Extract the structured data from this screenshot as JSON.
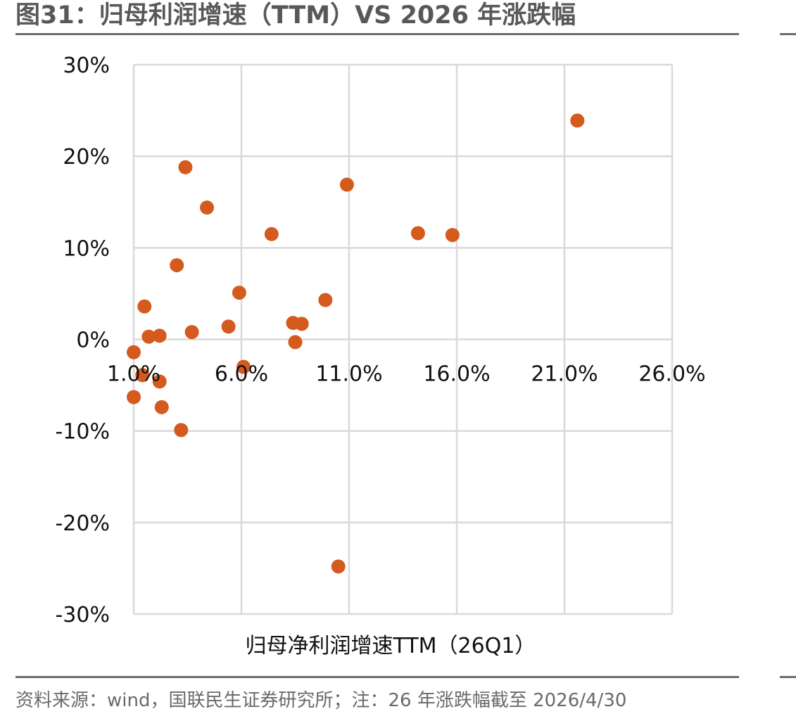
{
  "title": "图31：归母利润增速（TTM）VS 2026 年涨跌幅",
  "source": "资料来源：wind，国联民生证券研究所；注：26 年涨跌幅截至 2026/4/30",
  "chart_data": {
    "type": "scatter",
    "title": "",
    "xlabel": "归母净利润增速TTM（26Q1）",
    "ylabel": "",
    "xlim": [
      1.0,
      26.0
    ],
    "ylim": [
      -30,
      30
    ],
    "x_ticks": [
      1.0,
      6.0,
      11.0,
      16.0,
      21.0,
      26.0
    ],
    "x_tick_labels": [
      "1.0%",
      "6.0%",
      "11.0%",
      "16.0%",
      "21.0%",
      "26.0%"
    ],
    "y_ticks": [
      30,
      20,
      10,
      0,
      -10,
      -20,
      -30
    ],
    "y_tick_labels": [
      "30%",
      "20%",
      "10%",
      "0%",
      "-10%",
      "-20%",
      "-30%"
    ],
    "grid": true,
    "legend": "none",
    "marker_color": "#D55A1E",
    "grid_color": "#D9D9D9",
    "points": [
      {
        "x": 21.6,
        "y": 23.9
      },
      {
        "x": 3.4,
        "y": 18.8
      },
      {
        "x": 10.9,
        "y": 16.9
      },
      {
        "x": 4.4,
        "y": 14.4
      },
      {
        "x": 14.2,
        "y": 11.6
      },
      {
        "x": 15.8,
        "y": 11.4
      },
      {
        "x": 7.4,
        "y": 11.5
      },
      {
        "x": 3.0,
        "y": 8.1
      },
      {
        "x": 5.9,
        "y": 5.1
      },
      {
        "x": 9.9,
        "y": 4.3
      },
      {
        "x": 1.5,
        "y": 3.6
      },
      {
        "x": 8.4,
        "y": 1.8
      },
      {
        "x": 8.8,
        "y": 1.7
      },
      {
        "x": 5.4,
        "y": 1.4
      },
      {
        "x": 3.7,
        "y": 0.8
      },
      {
        "x": 2.2,
        "y": 0.4
      },
      {
        "x": 1.7,
        "y": 0.3
      },
      {
        "x": 8.5,
        "y": -0.3
      },
      {
        "x": 1.0,
        "y": -1.4
      },
      {
        "x": 6.1,
        "y": -3.0
      },
      {
        "x": 1.4,
        "y": -3.9
      },
      {
        "x": 2.2,
        "y": -4.6
      },
      {
        "x": 1.0,
        "y": -6.3
      },
      {
        "x": 2.3,
        "y": -7.4
      },
      {
        "x": 3.2,
        "y": -9.9
      },
      {
        "x": 10.5,
        "y": -24.8
      }
    ]
  }
}
